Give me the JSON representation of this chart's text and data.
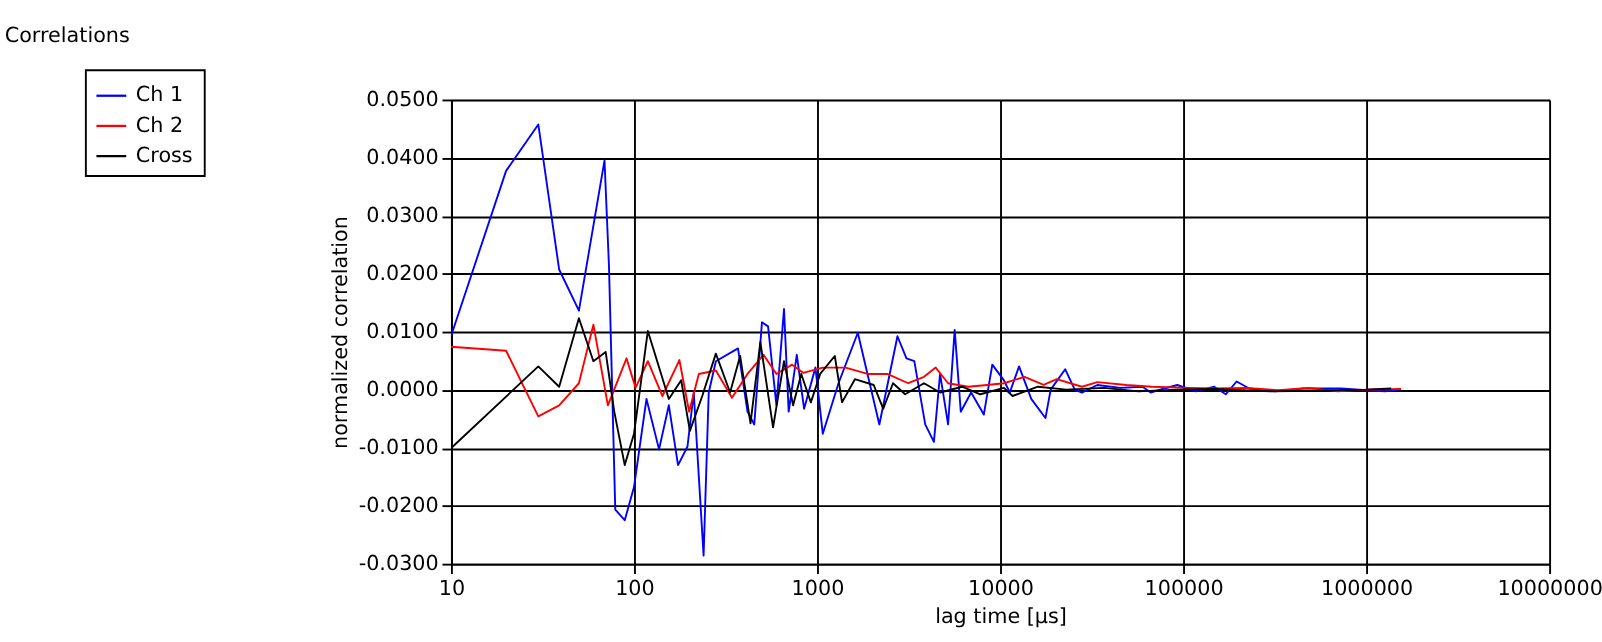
{
  "chart_data": {
    "type": "line",
    "title": "Correlations",
    "xlabel": "lag time [µs]",
    "ylabel": "normalized correlation",
    "log": "x",
    "grid": true,
    "legend": "top left",
    "marker": "none",
    "line_style": "solid",
    "xlim": [
      10,
      10000000
    ],
    "xticks": [
      10,
      100,
      1000,
      10000,
      100000,
      1000000,
      10000000
    ],
    "ylim": [
      -0.03,
      0.05
    ],
    "yticks": [
      {
        "value": -0.03,
        "label": "-0.0300"
      },
      {
        "value": -0.02,
        "label": "-0.0200"
      },
      {
        "value": -0.01,
        "label": "-0.0100"
      },
      {
        "value": 0,
        "label": "0.0000"
      },
      {
        "value": 0.01,
        "label": "0.0100"
      },
      {
        "value": 0.02,
        "label": "0.0200"
      },
      {
        "value": 0.03,
        "label": "0.0300"
      },
      {
        "value": 0.04,
        "label": "0.0400"
      },
      {
        "value": 0.05,
        "label": "0.0500"
      }
    ],
    "series": [
      {
        "name": "Ch 1",
        "color": "#0000ff",
        "x": [
          10,
          20,
          30,
          39,
          50,
          69,
          73,
          79,
          89,
          100,
          117,
          137,
          155,
          174,
          196,
          212,
          240,
          256,
          280,
          370,
          417,
          454,
          500,
          540,
          600,
          660,
          700,
          775,
          850,
          980,
          1075,
          1310,
          1670,
          2190,
          2750,
          3080,
          3400,
          3900,
          4350,
          4700,
          5200,
          5650,
          6100,
          6950,
          8150,
          9070,
          10500,
          11300,
          12700,
          14800,
          17700,
          18900,
          22700,
          25600,
          28000,
          34000,
          45500,
          60000,
          66500,
          79000,
          93000,
          117000,
          148000,
          171000,
          196000,
          230000,
          318000,
          455000,
          730000,
          1000000,
          1270000,
          1550000
        ],
        "values": [
          0.0092,
          0.0377,
          0.0457,
          0.0207,
          0.0136,
          0.0395,
          0.0212,
          -0.0207,
          -0.0225,
          -0.0168,
          -0.0016,
          -0.0103,
          -0.0027,
          -0.013,
          -0.0098,
          -0.0005,
          -0.0286,
          -0.0005,
          0.0049,
          0.0071,
          -0.0038,
          -0.006,
          0.0116,
          0.0109,
          -0.0027,
          0.0139,
          -0.0038,
          0.006,
          -0.0033,
          0.0038,
          -0.0076,
          0.0011,
          0.0098,
          -0.006,
          0.0092,
          0.0054,
          0.0049,
          -0.006,
          -0.009,
          0.0027,
          -0.006,
          0.0103,
          -0.0038,
          -0.0005,
          -0.0043,
          0.0043,
          0.0016,
          -0.0005,
          0.004,
          -0.0016,
          -0.0049,
          0.0,
          0.0035,
          0.0,
          -0.0005,
          0.0008,
          0.0003,
          0.0005,
          -0.0005,
          0.0002,
          0.0008,
          -0.0003,
          0.0005,
          -0.0008,
          0.0014,
          0.0002,
          -0.0003,
          0.0002,
          0.0002,
          -0.0001,
          -0.0003,
          0.0001
        ]
      },
      {
        "name": "Ch 2",
        "color": "#ff0000",
        "x": [
          10,
          20,
          30,
          39,
          50,
          60,
          72,
          91,
          102,
          119,
          143,
          177,
          200,
          226,
          280,
          343,
          417,
          510,
          600,
          730,
          840,
          1075,
          1430,
          1890,
          2420,
          3150,
          3840,
          4450,
          5200,
          6700,
          8500,
          10500,
          13600,
          17300,
          20400,
          28000,
          34000,
          49000,
          67500,
          108000,
          148000,
          221000,
          331000,
          490000,
          700000,
          1000000,
          1550000
        ],
        "values": [
          0.0074,
          0.0067,
          -0.0046,
          -0.0027,
          0.0011,
          0.0112,
          -0.0027,
          0.0054,
          0.0003,
          0.0049,
          -0.0011,
          0.0051,
          -0.0038,
          0.0027,
          0.0033,
          -0.0014,
          0.0027,
          0.006,
          0.0027,
          0.0043,
          0.0029,
          0.0038,
          0.0038,
          0.0027,
          0.0027,
          0.0011,
          0.0022,
          0.0038,
          0.0011,
          0.0005,
          0.0008,
          0.0011,
          0.0022,
          0.0008,
          0.0018,
          0.0005,
          0.0013,
          0.0008,
          0.0005,
          0.0003,
          0.0002,
          0.0003,
          -0.0001,
          0.0003,
          -0.0003,
          0.0,
          0.0001
        ]
      },
      {
        "name": "Cross",
        "color": "#000000",
        "x": [
          10,
          30,
          39,
          50,
          60,
          70,
          78,
          89,
          100,
          119,
          155,
          181,
          202,
          236,
          280,
          335,
          380,
          433,
          490,
          575,
          660,
          740,
          820,
          925,
          1040,
          1250,
          1370,
          1610,
          2040,
          2300,
          2600,
          3030,
          3840,
          4700,
          6200,
          7800,
          10500,
          11700,
          16100,
          23000,
          37000,
          57000,
          93000,
          148000,
          300000,
          530000,
          1000000,
          1370000
        ],
        "values": [
          -0.0101,
          0.004,
          0.0005,
          0.0123,
          0.0049,
          0.0065,
          -0.0038,
          -0.013,
          -0.0076,
          0.0101,
          -0.0016,
          0.0016,
          -0.0071,
          -0.0011,
          0.0062,
          -0.0005,
          0.0058,
          -0.0058,
          0.0082,
          -0.0065,
          0.0049,
          -0.0027,
          0.0027,
          -0.0022,
          0.0027,
          0.0058,
          -0.0022,
          0.0018,
          0.0008,
          -0.0033,
          0.0011,
          -0.0008,
          0.0011,
          -0.0005,
          0.0005,
          -0.0008,
          0.0003,
          -0.0011,
          0.0005,
          0.0,
          0.0003,
          -0.0003,
          0.0,
          0.0001,
          -0.0003,
          -0.0002,
          0.0,
          0.0002
        ]
      }
    ]
  }
}
